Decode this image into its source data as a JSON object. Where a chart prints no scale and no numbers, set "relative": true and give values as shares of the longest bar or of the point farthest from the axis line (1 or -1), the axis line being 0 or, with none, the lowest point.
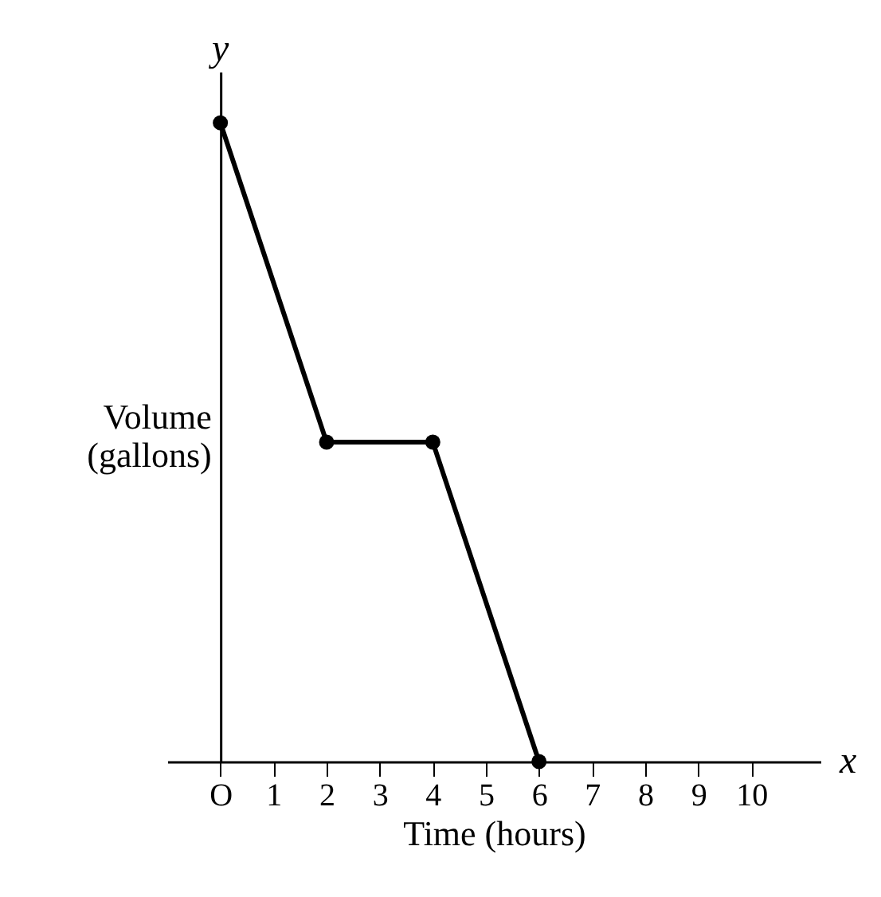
{
  "chart_data": {
    "type": "line",
    "relative": true,
    "x": [
      0,
      2,
      4,
      6
    ],
    "values": [
      1,
      0.5,
      0.5,
      0
    ],
    "color": "#000000",
    "marker": "circle",
    "line_style": "solid",
    "xlabel": "Time (hours)",
    "ylabel": "Volume (gallons)",
    "xlim": [
      -1,
      11.3
    ],
    "xticks": [
      {
        "value": 0,
        "label": "O"
      },
      1,
      2,
      3,
      4,
      5,
      6,
      7,
      8,
      9,
      10
    ],
    "annotations": [
      "x",
      "y"
    ]
  }
}
